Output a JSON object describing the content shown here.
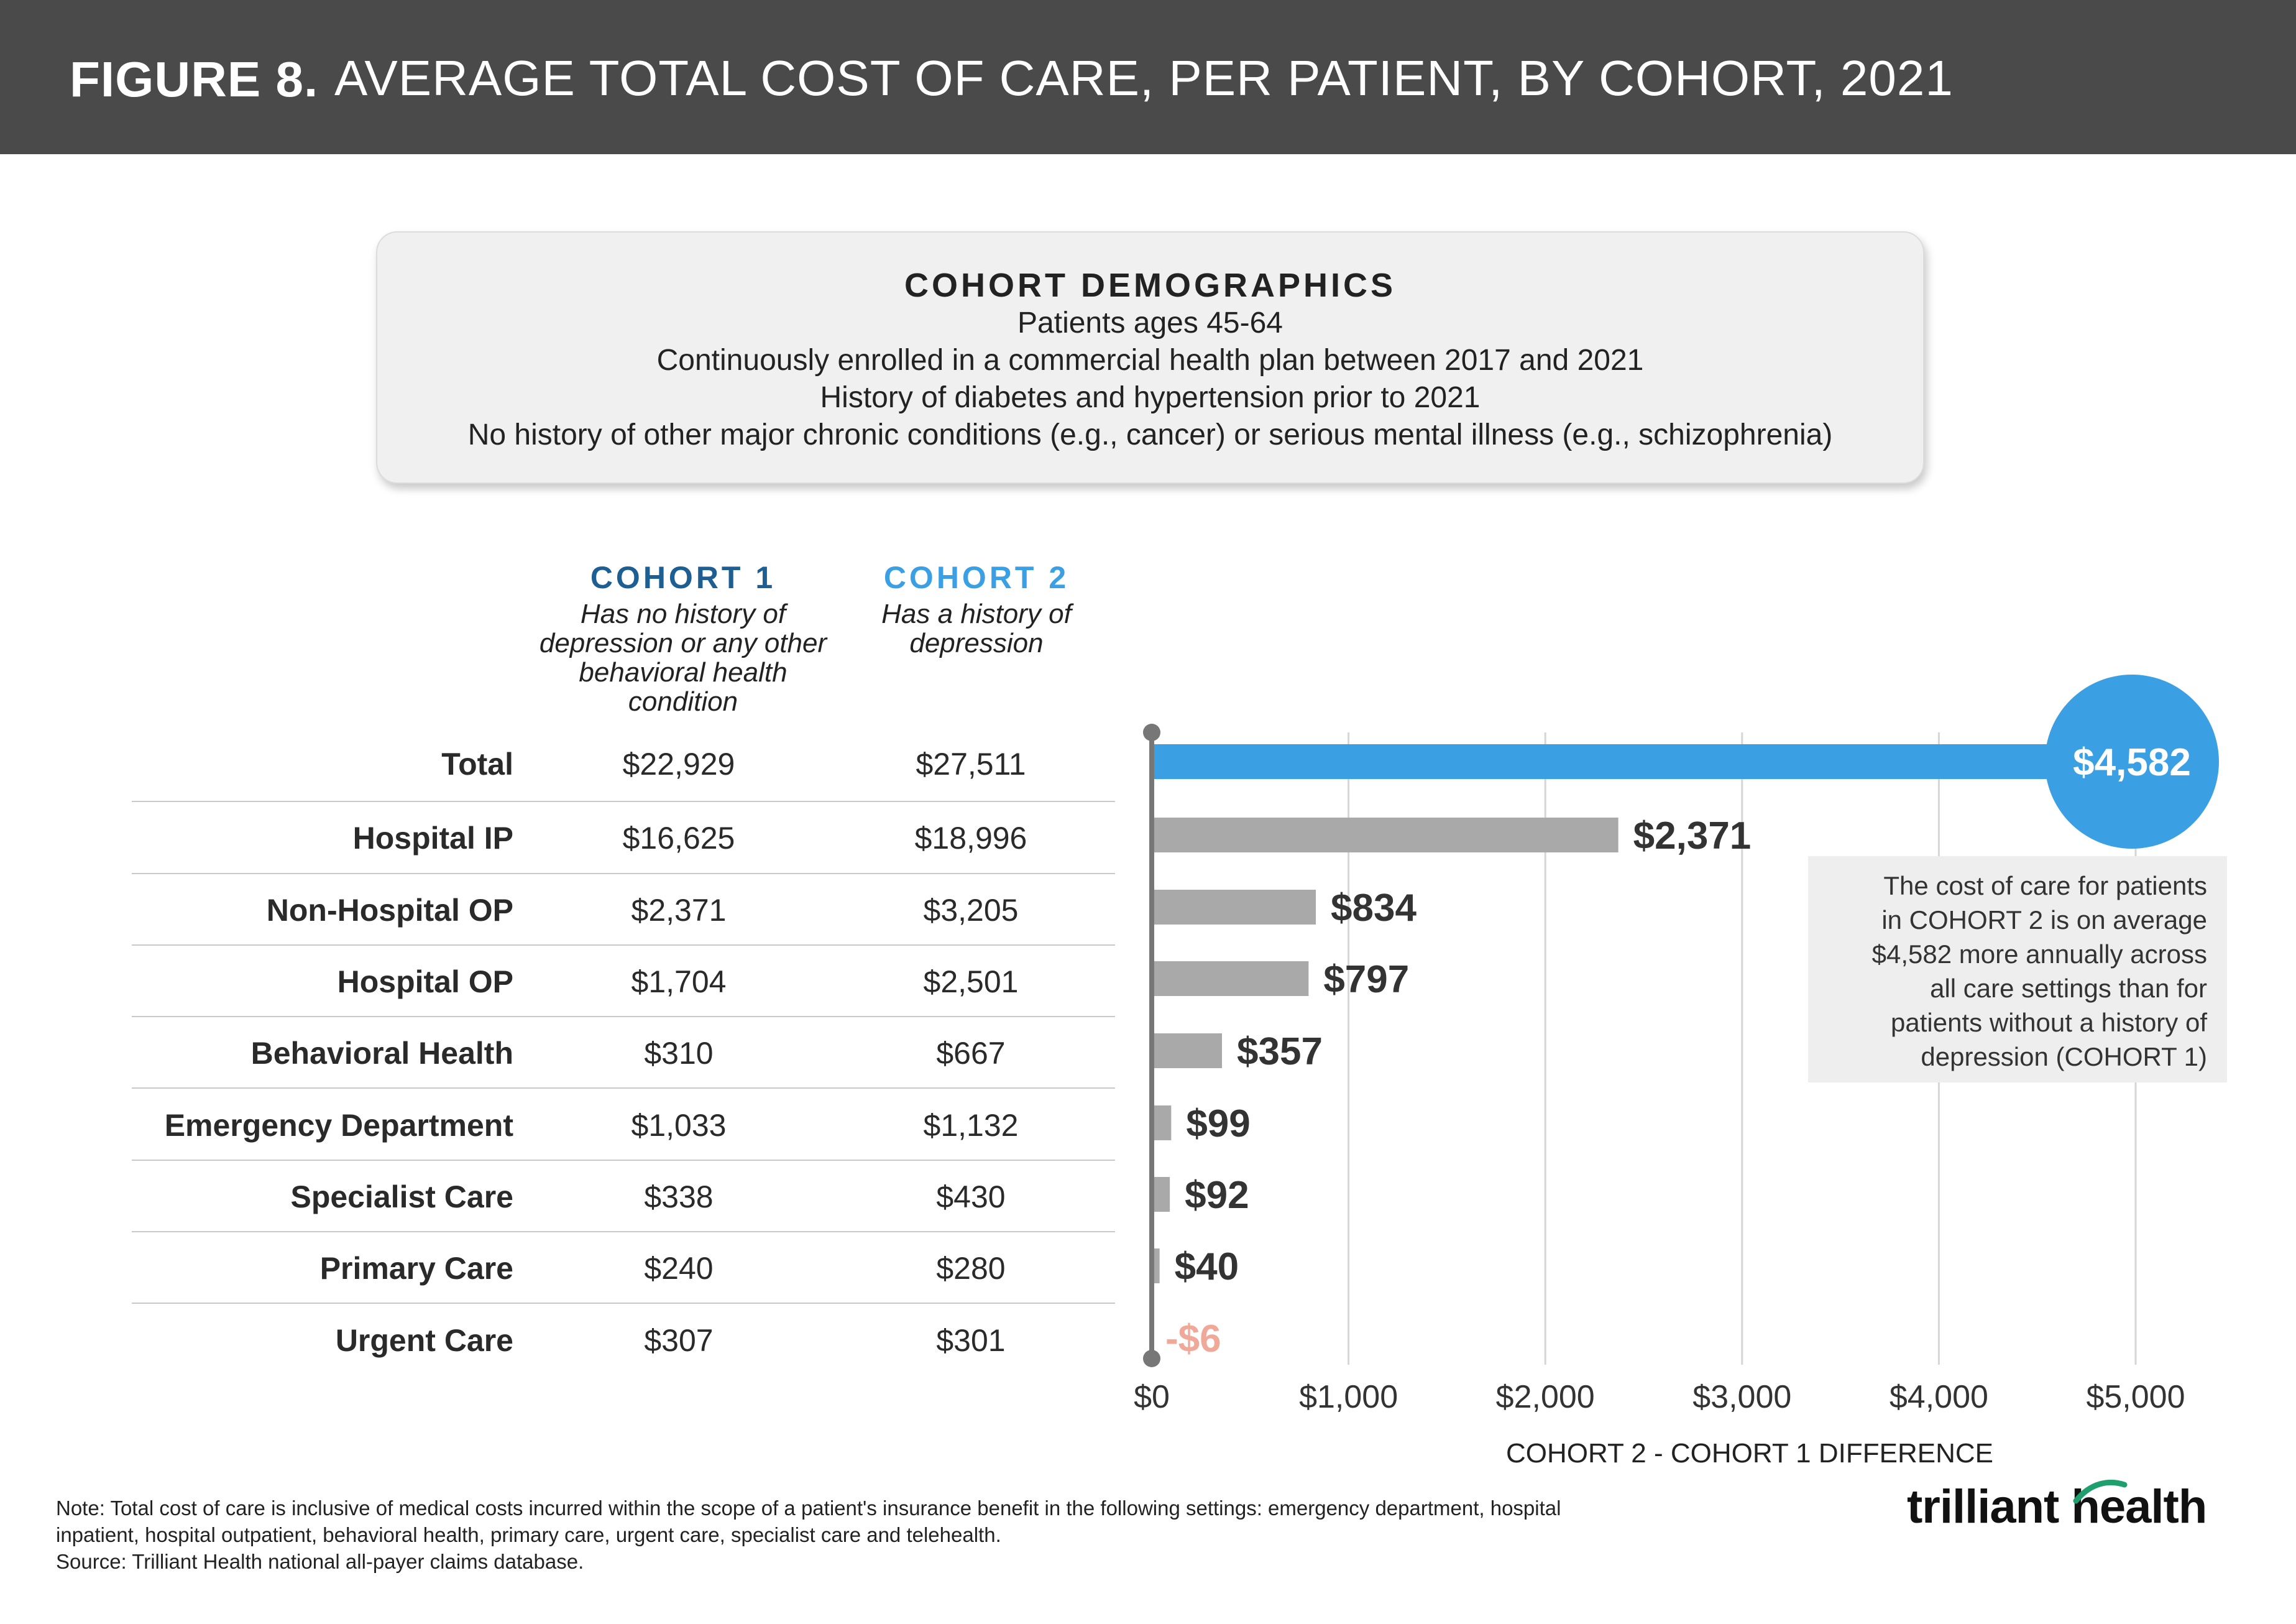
{
  "header": {
    "figure_label": "FIGURE 8.",
    "title": "AVERAGE TOTAL COST OF CARE, PER PATIENT, BY COHORT, 2021"
  },
  "demographics": {
    "title": "COHORT DEMOGRAPHICS",
    "lines": [
      "Patients ages 45-64",
      "Continuously enrolled in a commercial health plan between 2017 and 2021",
      "History of diabetes and hypertension prior to 2021",
      "No history of other major chronic conditions (e.g., cancer) or serious mental illness (e.g., schizophrenia)"
    ]
  },
  "cohort1": {
    "name": "COHORT 1",
    "desc_lines": [
      "Has no history of",
      "depression or any other",
      "behavioral health",
      "condition"
    ],
    "color": "#1d5e93"
  },
  "cohort2": {
    "name": "COHORT 2",
    "desc_lines": [
      "Has a history of",
      "depression"
    ],
    "color": "#3b9fe3"
  },
  "table": {
    "rows": [
      {
        "label": "Total",
        "c1": "$22,929",
        "c2": "$27,511"
      },
      {
        "label": "Hospital IP",
        "c1": "$16,625",
        "c2": "$18,996"
      },
      {
        "label": "Non-Hospital OP",
        "c1": "$2,371",
        "c2": "$3,205"
      },
      {
        "label": "Hospital OP",
        "c1": "$1,704",
        "c2": "$2,501"
      },
      {
        "label": "Behavioral Health",
        "c1": "$310",
        "c2": "$667"
      },
      {
        "label": "Emergency Department",
        "c1": "$1,033",
        "c2": "$1,132"
      },
      {
        "label": "Specialist Care",
        "c1": "$338",
        "c2": "$430"
      },
      {
        "label": "Primary Care",
        "c1": "$240",
        "c2": "$280"
      },
      {
        "label": "Urgent Care",
        "c1": "$307",
        "c2": "$301"
      }
    ]
  },
  "chart_data": {
    "type": "bar",
    "orientation": "horizontal",
    "categories": [
      "Total",
      "Hospital IP",
      "Non-Hospital OP",
      "Hospital OP",
      "Behavioral Health",
      "Emergency Department",
      "Specialist Care",
      "Primary Care",
      "Urgent Care"
    ],
    "values": [
      4582,
      2371,
      834,
      797,
      357,
      99,
      92,
      40,
      -6
    ],
    "data_labels": [
      "$4,582",
      "$2,371",
      "$834",
      "$797",
      "$357",
      "$99",
      "$92",
      "$40",
      "-$6"
    ],
    "xlabel": "COHORT 2 - COHORT 1 DIFFERENCE",
    "xlim": [
      0,
      5000
    ],
    "x_ticks": [
      0,
      1000,
      2000,
      3000,
      4000,
      5000
    ],
    "x_tick_labels": [
      "$0",
      "$1,000",
      "$2,000",
      "$3,000",
      "$4,000",
      "$5,000"
    ],
    "grid": "vertical",
    "colors": {
      "total_bar": "#3b9fe3",
      "bar": "#a9a9a9",
      "negative_label": "#f0a898",
      "label": "#333333",
      "gridline": "#d6d6d6",
      "axis": "#777777"
    }
  },
  "callout": {
    "lines": [
      "The cost of care for patients",
      "in COHORT 2 is on average",
      "$4,582 more annually across",
      "all care settings than for",
      "patients without a history of",
      "depression (COHORT 1)"
    ]
  },
  "footnote": {
    "lines": [
      "Note: Total cost of care is inclusive of medical costs incurred within the scope of a patient's insurance benefit in the following settings: emergency department, hospital",
      "inpatient, hospital outpatient, behavioral health, primary care, urgent care, specialist care and telehealth.",
      "Source: Trilliant Health national all-payer claims database."
    ]
  },
  "logo": {
    "text": "trilliant health",
    "accent_color": "#1f9e6e"
  }
}
